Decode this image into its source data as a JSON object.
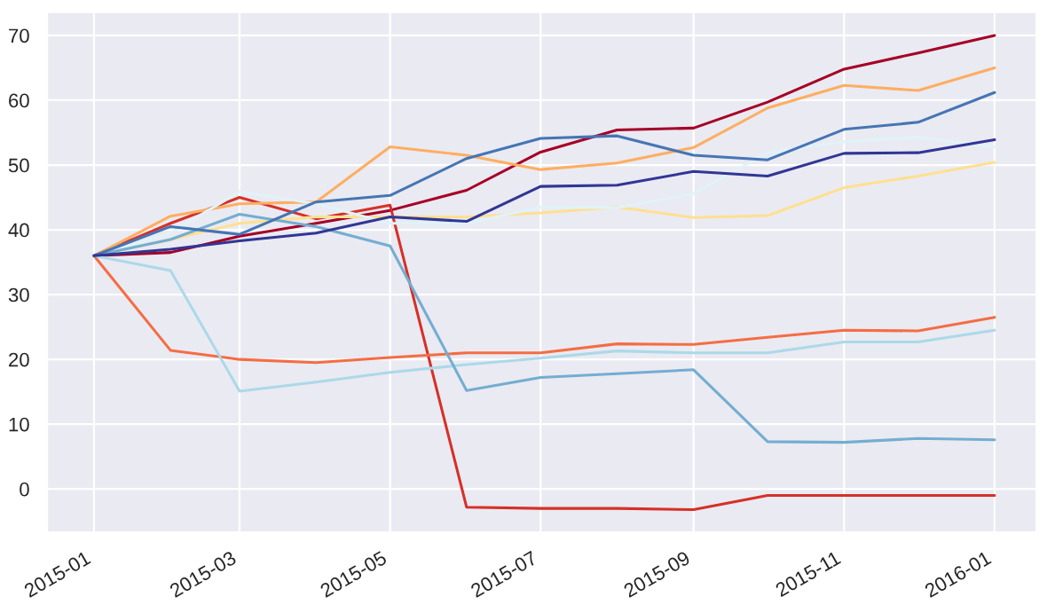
{
  "chart_data": {
    "type": "line",
    "x": [
      "2015-01-01",
      "2015-02-01",
      "2015-03-01",
      "2015-04-01",
      "2015-05-01",
      "2015-06-01",
      "2015-07-01",
      "2015-08-01",
      "2015-09-01",
      "2015-10-01",
      "2015-11-01",
      "2015-12-01",
      "2016-01-01"
    ],
    "xlim": [
      "2014-12-13",
      "2016-01-18"
    ],
    "xticks": [
      {
        "value": "2015-01-01",
        "label": "2015-01"
      },
      {
        "value": "2015-03-01",
        "label": "2015-03"
      },
      {
        "value": "2015-05-01",
        "label": "2015-05"
      },
      {
        "value": "2015-07-01",
        "label": "2015-07"
      },
      {
        "value": "2015-09-01",
        "label": "2015-09"
      },
      {
        "value": "2015-11-01",
        "label": "2015-11"
      },
      {
        "value": "2016-01-01",
        "label": "2016-01"
      }
    ],
    "ylim": [
      -6.7,
      73.6
    ],
    "yticks": [
      0,
      10,
      20,
      30,
      40,
      50,
      60,
      70
    ],
    "grid": true,
    "series": [
      {
        "color": "#a50026",
        "values": [
          36,
          36.5,
          39,
          41,
          43,
          46.1,
          52,
          55.4,
          55.7,
          59.7,
          64.8,
          67.3,
          70
        ]
      },
      {
        "color": "#d73027",
        "values": [
          36,
          41,
          45,
          41.7,
          43.8,
          -2.8,
          -3,
          -3,
          -3.2,
          -1,
          -1,
          -1,
          -1
        ]
      },
      {
        "color": "#f46d43",
        "values": [
          36,
          21.4,
          20,
          19.5,
          20.3,
          21,
          21,
          22.4,
          22.3,
          23.4,
          24.5,
          24.4,
          26.5
        ]
      },
      {
        "color": "#fdae61",
        "values": [
          36,
          42.1,
          44,
          44.3,
          52.8,
          51.5,
          49.3,
          50.3,
          52.7,
          58.8,
          62.3,
          61.5,
          65
        ]
      },
      {
        "color": "#fee090",
        "values": [
          36,
          38.5,
          41,
          42,
          42,
          42,
          42.6,
          43.5,
          41.9,
          42.2,
          46.5,
          48.3,
          50.4
        ]
      },
      {
        "color": "#e0f3f8",
        "values": [
          36,
          39.5,
          45.9,
          44,
          41,
          41,
          43.5,
          43.4,
          45.6,
          51.9,
          53.6,
          54.3,
          52.8
        ]
      },
      {
        "color": "#abd9e9",
        "values": [
          36,
          33.7,
          15.1,
          16.5,
          18,
          19.2,
          20.2,
          21.3,
          21,
          21,
          22.7,
          22.7,
          24.5
        ]
      },
      {
        "color": "#74add1",
        "values": [
          36,
          38.5,
          42.4,
          40.5,
          37.5,
          15.2,
          17.2,
          17.8,
          18.4,
          7.3,
          7.2,
          7.8,
          7.6
        ]
      },
      {
        "color": "#4575b4",
        "values": [
          36,
          40.5,
          39.3,
          44.3,
          45.3,
          51,
          54.1,
          54.5,
          51.5,
          50.8,
          55.5,
          56.6,
          61.2
        ]
      },
      {
        "color": "#313695",
        "values": [
          36,
          37,
          38.3,
          39.5,
          42,
          41.3,
          46.7,
          46.9,
          49,
          48.3,
          51.8,
          51.9,
          53.9
        ]
      }
    ]
  }
}
